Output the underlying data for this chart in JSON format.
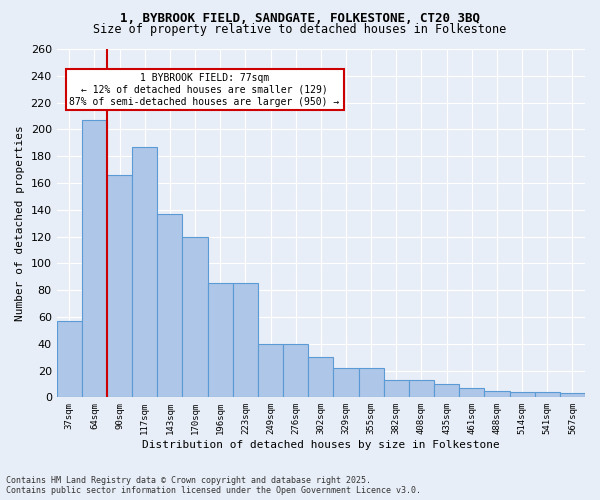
{
  "title_line1": "1, BYBROOK FIELD, SANDGATE, FOLKESTONE, CT20 3BQ",
  "title_line2": "Size of property relative to detached houses in Folkestone",
  "xlabel": "Distribution of detached houses by size in Folkestone",
  "ylabel": "Number of detached properties",
  "categories": [
    "37sqm",
    "64sqm",
    "90sqm",
    "117sqm",
    "143sqm",
    "170sqm",
    "196sqm",
    "223sqm",
    "249sqm",
    "276sqm",
    "302sqm",
    "329sqm",
    "355sqm",
    "382sqm",
    "408sqm",
    "435sqm",
    "461sqm",
    "488sqm",
    "514sqm",
    "541sqm",
    "567sqm"
  ],
  "values": [
    57,
    207,
    166,
    187,
    137,
    120,
    85,
    85,
    40,
    40,
    30,
    22,
    22,
    13,
    13,
    10,
    7,
    5,
    4,
    4,
    3
  ],
  "bar_color": "#aec6e8",
  "bar_edge_color": "#5b9bd5",
  "property_line_x": 1.5,
  "property_sqm": 77,
  "annotation_title": "1 BYBROOK FIELD: 77sqm",
  "annotation_line2": "← 12% of detached houses are smaller (129)",
  "annotation_line3": "87% of semi-detached houses are larger (950) →",
  "annotation_box_color": "#ffffff",
  "annotation_box_edge": "#cc0000",
  "vline_color": "#cc0000",
  "background_color": "#e8eef7",
  "grid_color": "#ffffff",
  "ylim": [
    0,
    260
  ],
  "yticks": [
    0,
    20,
    40,
    60,
    80,
    100,
    120,
    140,
    160,
    180,
    200,
    220,
    240,
    260
  ],
  "footer_line1": "Contains HM Land Registry data © Crown copyright and database right 2025.",
  "footer_line2": "Contains public sector information licensed under the Open Government Licence v3.0."
}
